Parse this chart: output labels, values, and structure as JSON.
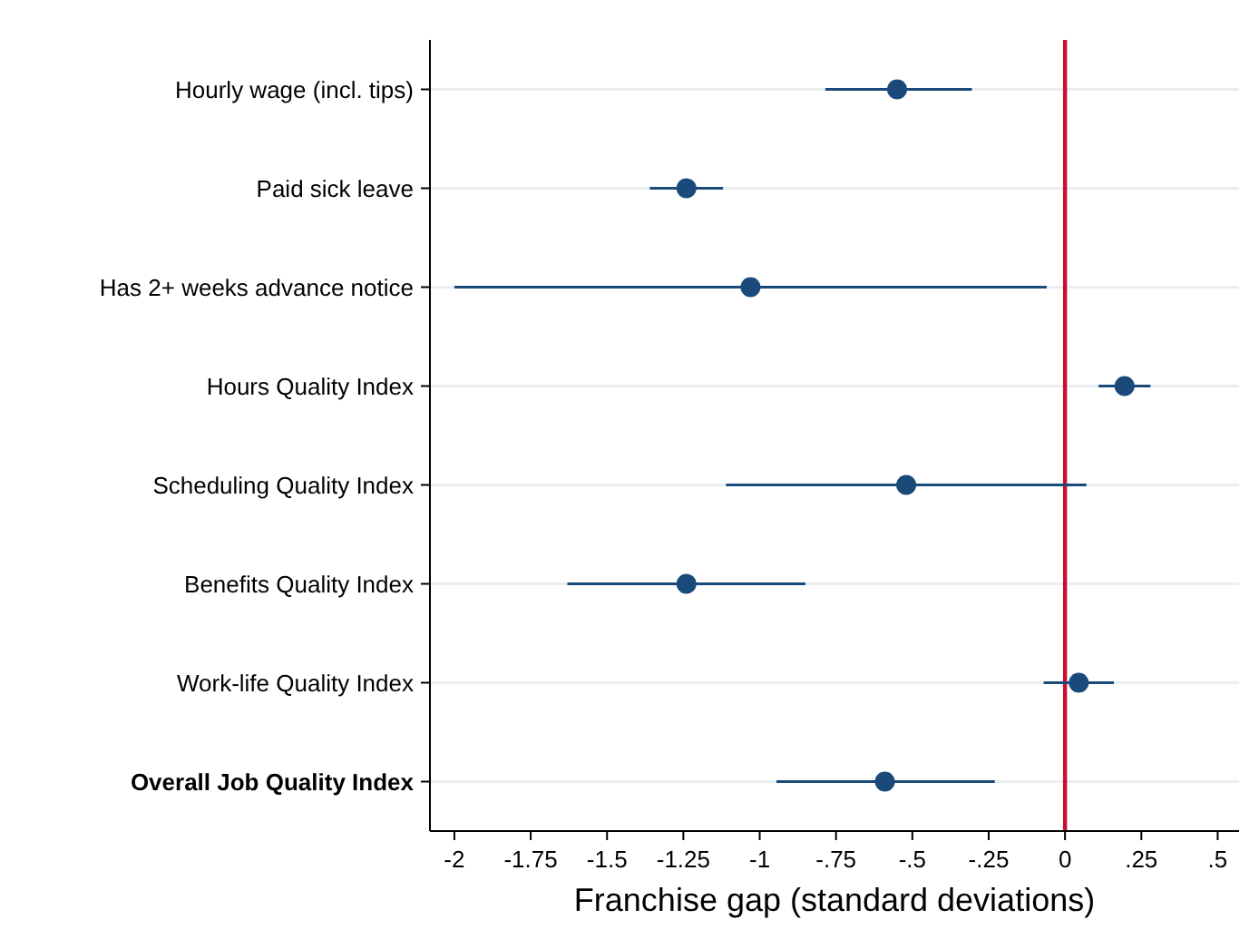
{
  "chart_data": {
    "type": "scatter",
    "orientation": "horizontal",
    "xlabel": "Franchise gap (standard deviations)",
    "categories": [
      "Hourly wage (incl. tips)",
      "Paid sick leave",
      "Has 2+ weeks advance notice",
      "Hours Quality Index",
      "Scheduling Quality Index",
      "Benefits Quality Index",
      "Work-life Quality Index",
      "Overall Job Quality Index"
    ],
    "values": [
      -0.55,
      -1.24,
      -1.03,
      0.195,
      -0.52,
      -1.24,
      0.045,
      -0.59
    ],
    "errors": [
      [
        -0.785,
        -0.305
      ],
      [
        -1.36,
        -1.12
      ],
      [
        -2.0,
        -0.06
      ],
      [
        0.11,
        0.28
      ],
      [
        -1.11,
        0.07
      ],
      [
        -1.63,
        -0.85
      ],
      [
        -0.07,
        0.16
      ],
      [
        -0.945,
        -0.23
      ]
    ],
    "color": "#1a4a7a",
    "marker": "circle",
    "grid": "y",
    "xlim": [
      -2.08,
      0.57
    ],
    "xticks": [
      -2,
      -1.75,
      -1.5,
      -1.25,
      -1,
      {
        "value": -0.75,
        "label": "-.75"
      },
      {
        "value": -0.5,
        "label": "-.5"
      },
      {
        "value": -0.25,
        "label": "-.25"
      },
      0,
      {
        "value": 0.25,
        "label": ".25"
      },
      {
        "value": 0.5,
        "label": ".5"
      }
    ],
    "ref_lines": [
      {
        "axis": "x",
        "value": 0,
        "color": "#c8102e"
      }
    ]
  }
}
